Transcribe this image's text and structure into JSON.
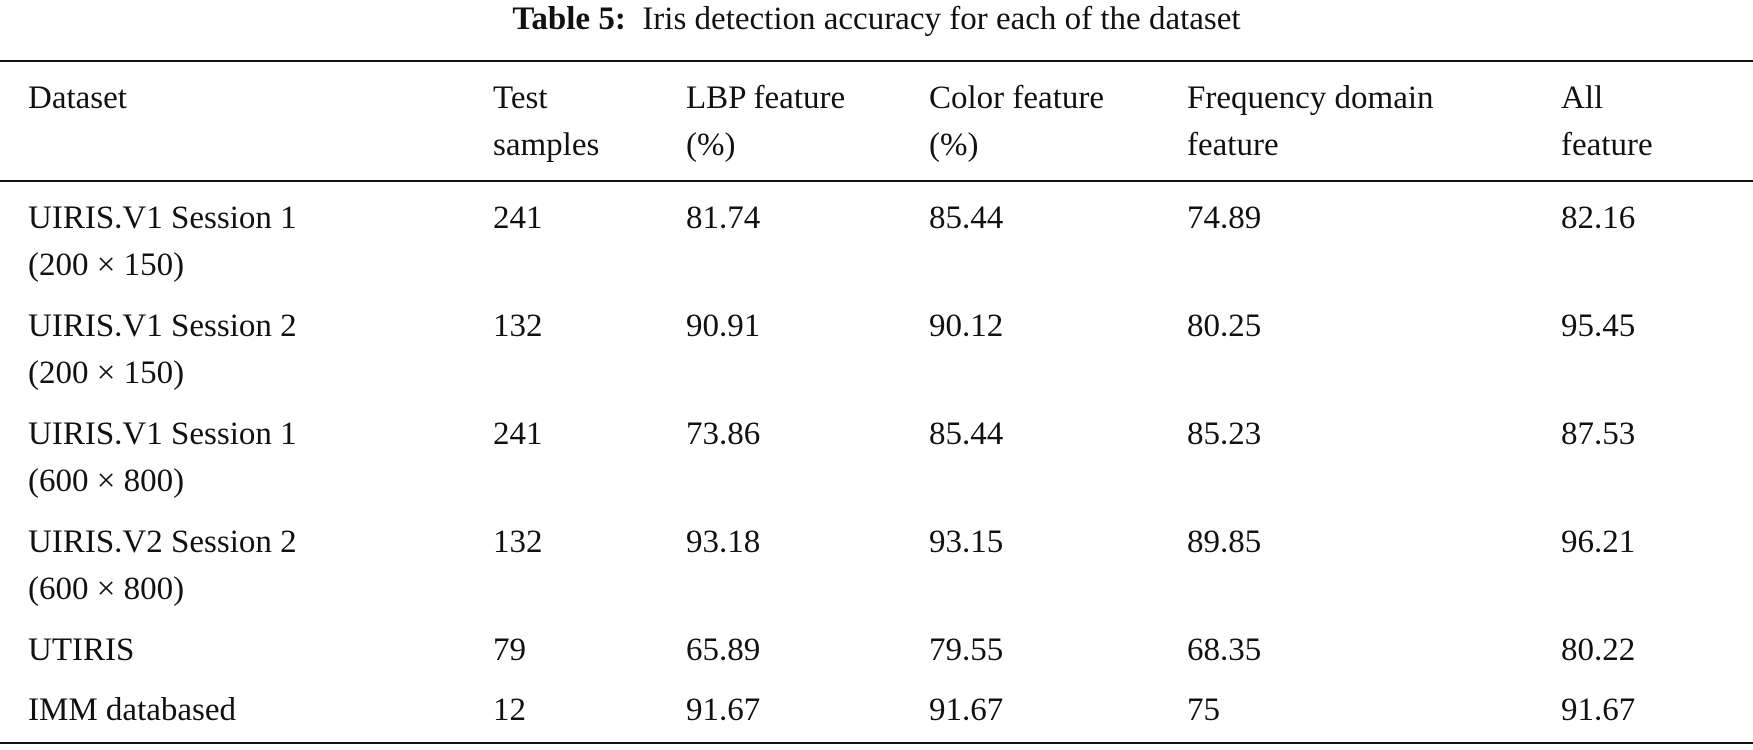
{
  "caption": {
    "label": "Table 5:",
    "text": "Iris detection accuracy for each of the dataset"
  },
  "table": {
    "header": [
      [
        "Dataset"
      ],
      [
        "Test",
        "samples"
      ],
      [
        "LBP feature",
        "(%)"
      ],
      [
        "Color feature",
        "(%)"
      ],
      [
        "Frequency domain",
        "feature"
      ],
      [
        "All",
        "feature"
      ]
    ],
    "rows": [
      [
        [
          "UIRIS.V1 Session 1",
          "(200 × 150)"
        ],
        "241",
        "81.74",
        "85.44",
        "74.89",
        "82.16"
      ],
      [
        [
          "UIRIS.V1 Session 2",
          "(200 × 150)"
        ],
        "132",
        "90.91",
        "90.12",
        "80.25",
        "95.45"
      ],
      [
        [
          "UIRIS.V1 Session 1",
          "(600 × 800)"
        ],
        "241",
        "73.86",
        "85.44",
        "85.23",
        "87.53"
      ],
      [
        [
          "UIRIS.V2 Session 2",
          "(600 × 800)"
        ],
        "132",
        "93.18",
        "93.15",
        "89.85",
        "96.21"
      ],
      [
        [
          "UTIRIS"
        ],
        "79",
        "65.89",
        "79.55",
        "68.35",
        "80.22"
      ],
      [
        [
          "IMM databased"
        ],
        "12",
        "91.67",
        "91.67",
        "75",
        "91.67"
      ]
    ]
  }
}
